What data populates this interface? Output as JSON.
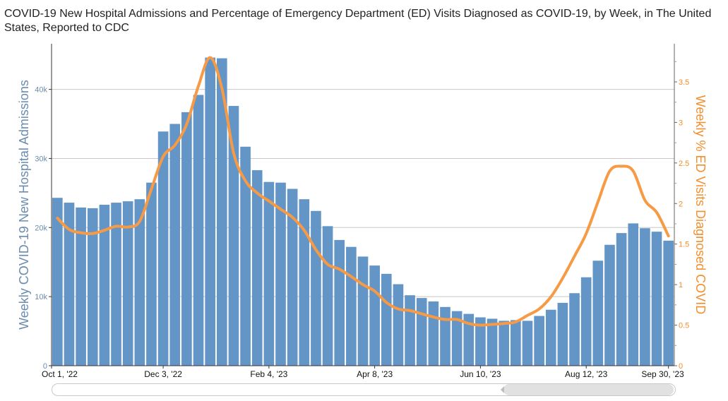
{
  "title": "COVID-19 New Hospital Admissions and Percentage of Emergency Department (ED) Visits Diagnosed as COVID-19, by Week, in The United States, Reported to CDC",
  "colors": {
    "bars": "#6495c7",
    "line": "#f79a45",
    "y_axis_left": "#6a8cae",
    "y_axis_right": "#f28e2b",
    "grid": "#c8c8c8"
  },
  "chart_data": {
    "type": "bar",
    "x_tick_labels": [
      "Oct 1, '22",
      "Dec 3, '22",
      "Feb 4, '23",
      "Apr 8, '23",
      "Jun 10, '23",
      "Aug 12, '23",
      "Sep 30, '23"
    ],
    "x_tick_indices": [
      0,
      9,
      18,
      27,
      36,
      45,
      52
    ],
    "ylabel": "Weekly COVID-19 New Hospital Admissions",
    "y2label": "Weekly % ED Visits Diagnosed COVID",
    "ylim": [
      0,
      46600
    ],
    "y_ticks": [
      0,
      10000,
      20000,
      30000,
      40000
    ],
    "y_tick_labels": [
      "0",
      "10k",
      "20k",
      "30k",
      "40k"
    ],
    "y2lim": [
      0,
      3.97
    ],
    "y2_ticks": [
      0,
      0.5,
      1,
      1.5,
      2,
      2.5,
      3,
      3.5
    ],
    "y2_tick_labels": [
      "0",
      "0.5",
      "1",
      "1.5",
      "2",
      "2.5",
      "3",
      "3.5"
    ],
    "grid": "horizontal",
    "series": [
      {
        "type": "bar",
        "axis": "left",
        "values": [
          24300,
          23600,
          22900,
          22800,
          23300,
          23600,
          23800,
          24100,
          26500,
          33900,
          35000,
          36700,
          39200,
          44600,
          44500,
          37600,
          31700,
          28300,
          26600,
          26500,
          25600,
          24100,
          22400,
          20200,
          18200,
          17200,
          15800,
          14500,
          13300,
          11800,
          10200,
          9800,
          9300,
          8500,
          7900,
          7500,
          7000,
          6800,
          6500,
          6600,
          6500,
          7200,
          8100,
          9100,
          10500,
          12800,
          15200,
          17500,
          19200,
          20600,
          19900,
          19400,
          18100
        ]
      },
      {
        "type": "line",
        "axis": "right",
        "values": [
          1.82,
          1.68,
          1.64,
          1.63,
          1.67,
          1.72,
          1.71,
          1.78,
          2.18,
          2.58,
          2.72,
          2.98,
          3.45,
          3.8,
          3.42,
          2.62,
          2.28,
          2.13,
          2.03,
          1.93,
          1.83,
          1.67,
          1.43,
          1.25,
          1.19,
          1.1,
          1.0,
          0.92,
          0.78,
          0.7,
          0.68,
          0.64,
          0.6,
          0.57,
          0.57,
          0.52,
          0.5,
          0.51,
          0.52,
          0.54,
          0.62,
          0.7,
          0.85,
          1.08,
          1.35,
          1.63,
          2.02,
          2.4,
          2.46,
          2.4,
          2.04,
          1.89,
          1.6
        ]
      }
    ]
  },
  "scrollbar": {
    "position": 0.725,
    "size": 0.273
  }
}
